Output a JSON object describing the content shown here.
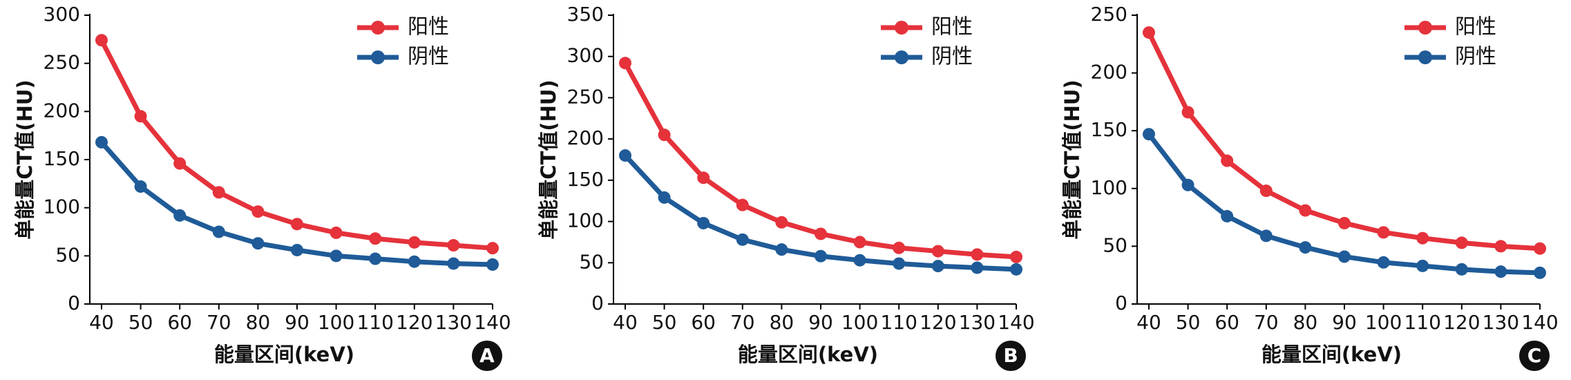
{
  "chart_data": [
    {
      "type": "line",
      "label": "A",
      "x_label": "能量区间(keV)",
      "y_label": "单能量CT值(HU)",
      "x": [
        40,
        50,
        60,
        70,
        80,
        90,
        100,
        110,
        120,
        130,
        140
      ],
      "xlim": [
        37,
        140
      ],
      "xticks": [
        40,
        50,
        60,
        70,
        80,
        90,
        100,
        110,
        120,
        130,
        140
      ],
      "ylim": [
        0,
        300
      ],
      "yticks": [
        0,
        50,
        100,
        150,
        200,
        250,
        300
      ],
      "series": [
        {
          "name": "阳性",
          "color": "#e5323b",
          "values": [
            274,
            195,
            146,
            116,
            96,
            83,
            74,
            68,
            64,
            61,
            58
          ]
        },
        {
          "name": "阴性",
          "color": "#1f5b98",
          "values": [
            168,
            122,
            92,
            75,
            63,
            56,
            50,
            47,
            44,
            42,
            41
          ]
        }
      ]
    },
    {
      "type": "line",
      "label": "B",
      "x_label": "能量区间(keV)",
      "y_label": "单能量CT值(HU)",
      "x": [
        40,
        50,
        60,
        70,
        80,
        90,
        100,
        110,
        120,
        130,
        140
      ],
      "xlim": [
        37,
        140
      ],
      "xticks": [
        40,
        50,
        60,
        70,
        80,
        90,
        100,
        110,
        120,
        130,
        140
      ],
      "ylim": [
        0,
        350
      ],
      "yticks": [
        0,
        50,
        100,
        150,
        200,
        250,
        300,
        350
      ],
      "series": [
        {
          "name": "阳性",
          "color": "#e5323b",
          "values": [
            292,
            205,
            153,
            120,
            99,
            85,
            75,
            68,
            64,
            60,
            57
          ]
        },
        {
          "name": "阴性",
          "color": "#1f5b98",
          "values": [
            180,
            129,
            98,
            78,
            66,
            58,
            53,
            49,
            46,
            44,
            42
          ]
        }
      ]
    },
    {
      "type": "line",
      "label": "C",
      "x_label": "能量区间(keV)",
      "y_label": "单能量CT值(HU)",
      "x": [
        40,
        50,
        60,
        70,
        80,
        90,
        100,
        110,
        120,
        130,
        140
      ],
      "xlim": [
        37,
        140
      ],
      "xticks": [
        40,
        50,
        60,
        70,
        80,
        90,
        100,
        110,
        120,
        130,
        140
      ],
      "ylim": [
        0,
        250
      ],
      "yticks": [
        0,
        50,
        100,
        150,
        200,
        250
      ],
      "series": [
        {
          "name": "阳性",
          "color": "#e5323b",
          "values": [
            235,
            166,
            124,
            98,
            81,
            70,
            62,
            57,
            53,
            50,
            48
          ]
        },
        {
          "name": "阴性",
          "color": "#1f5b98",
          "values": [
            147,
            103,
            76,
            59,
            49,
            41,
            36,
            33,
            30,
            28,
            27
          ]
        }
      ]
    }
  ]
}
